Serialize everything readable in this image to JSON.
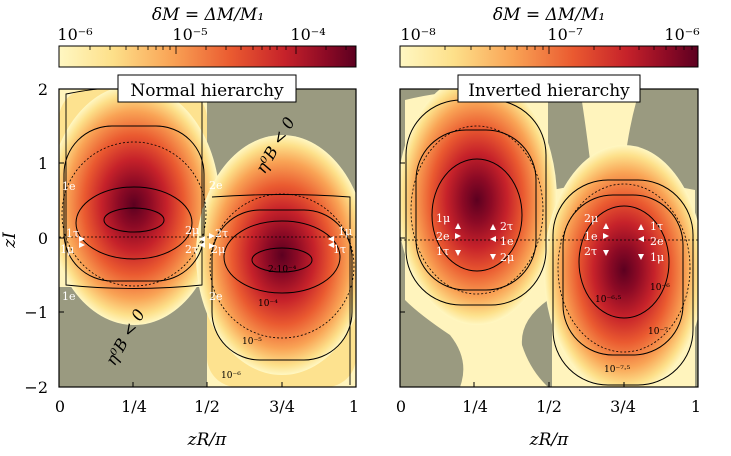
{
  "figure": {
    "colorbar_left_title": "δM = ΔM/M₁",
    "colorbar_right_title": "δM = ΔM/M₁",
    "colorbar_left_ticks": [
      "10⁻⁶",
      "10⁻⁵",
      "10⁻⁴"
    ],
    "colorbar_right_ticks": [
      "10⁻⁸",
      "10⁻⁷",
      "10⁻⁶"
    ],
    "panel_left_title": "Normal hierarchy",
    "panel_right_title": "Inverted hierarchy",
    "y_axis_label": "zI",
    "x_axis_label_left": "zR/π",
    "x_axis_label_right": "zR/π",
    "x_tick_labels": [
      "0",
      "1/4",
      "1/2",
      "3/4",
      "1"
    ],
    "y_tick_labels": [
      "2",
      "1",
      "0",
      "−1",
      "−2"
    ],
    "region_label_top": "η⁰B < 0",
    "region_label_bottom": "η⁰B < 0",
    "left_markers": {
      "m1e_top": "1e",
      "m1e_bot": "1e",
      "m1tau": "1τ",
      "m1mu": "1μ",
      "m2mu": "2μ",
      "m2tau": "2τ",
      "m2e_top": "2e",
      "m2e_bot": "2e",
      "m2tau_r": "2τ",
      "m2mu_r": "2μ",
      "m1mu_r": "1μ",
      "m1tau_r": "1τ"
    },
    "left_contours": {
      "c1": "2·10⁻⁴",
      "c2": "10⁻⁴",
      "c3": "10⁻⁵",
      "c4": "10⁻⁶"
    },
    "right_markers": {
      "a1": "1μ",
      "a2": "2e",
      "a3": "1τ",
      "b1": "2τ",
      "b2": "1e",
      "b3": "2μ",
      "c1": "2μ",
      "c2": "1e",
      "c3": "2τ",
      "d1": "1τ",
      "d2": "2e",
      "d3": "1μ"
    },
    "right_contours": {
      "c1": "10⁻⁶",
      "c2": "10⁻⁶·⁵",
      "c3": "10⁻⁷",
      "c4": "10⁻⁷·⁵"
    }
  },
  "colors": {
    "negative_region": "#9a9a80",
    "colormap": [
      "#fff7c2",
      "#fde08a",
      "#f9a355",
      "#ea5a30",
      "#c6222a",
      "#8c0a25",
      "#5c0020"
    ]
  },
  "chart_data": [
    {
      "type": "heatmap",
      "title": "Normal hierarchy",
      "colorbar_title": "δM = ΔM/M₁",
      "colorbar_scale": "log",
      "colorbar_range": [
        1e-06,
        0.0002
      ],
      "xlabel": "zR/π",
      "ylabel": "zI",
      "xlim": [
        0,
        1
      ],
      "ylim": [
        -2,
        2
      ],
      "x_ticks": [
        "0",
        "1/4",
        "1/2",
        "3/4",
        "1"
      ],
      "y_ticks": [
        2,
        1,
        0,
        -1,
        -2
      ],
      "contour_labels": [
        "2·10⁻⁴",
        "10⁻⁴",
        "10⁻⁵",
        "10⁻⁶"
      ],
      "excluded_region_label": "η⁰B < 0",
      "peaks": [
        {
          "zR_over_pi": 0.25,
          "zI": 0.2,
          "deltaM": 0.0002
        },
        {
          "zR_over_pi": 0.75,
          "zI": -0.2,
          "deltaM": 0.0002
        }
      ],
      "markers": [
        "1e",
        "1τ",
        "1μ",
        "2μ",
        "2τ",
        "2e",
        "2τ",
        "2μ",
        "1μ",
        "1τ",
        "2e",
        "1e"
      ]
    },
    {
      "type": "heatmap",
      "title": "Inverted hierarchy",
      "colorbar_title": "δM = ΔM/M₁",
      "colorbar_scale": "log",
      "colorbar_range": [
        1e-08,
        1e-06
      ],
      "xlabel": "zR/π",
      "ylabel": "zI",
      "xlim": [
        0,
        1
      ],
      "ylim": [
        -2,
        2
      ],
      "x_ticks": [
        "0",
        "1/4",
        "1/2",
        "3/4",
        "1"
      ],
      "y_ticks": [
        2,
        1,
        0,
        -1,
        -2
      ],
      "contour_labels": [
        "10⁻⁶",
        "10⁻⁶·⁵",
        "10⁻⁷",
        "10⁻⁷·⁵"
      ],
      "peaks": [
        {
          "zR_over_pi": 0.25,
          "zI": 0.35,
          "deltaM": 1e-06
        },
        {
          "zR_over_pi": 0.75,
          "zI": -0.35,
          "deltaM": 1e-06
        }
      ],
      "markers": [
        "1μ",
        "2e",
        "1τ",
        "2τ",
        "1e",
        "2μ",
        "2μ",
        "1e",
        "2τ",
        "1τ",
        "2e",
        "1μ"
      ]
    }
  ]
}
